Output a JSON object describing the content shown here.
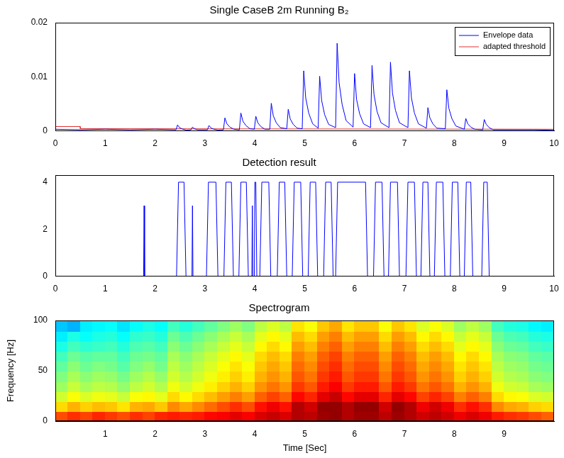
{
  "chart_data": [
    {
      "type": "line",
      "title": "Single CaseB 2m Running B₂",
      "xlim": [
        0,
        10
      ],
      "xticks": [
        0,
        1,
        2,
        3,
        4,
        5,
        6,
        7,
        8,
        9,
        10
      ],
      "ylim": [
        0,
        0.02
      ],
      "yticks": [
        0,
        0.01,
        0.02
      ],
      "grid": false,
      "legend": "upper right",
      "series": [
        {
          "name": "Envelope data",
          "color": "#0000ff",
          "x": [
            0,
            0.5,
            1,
            1.5,
            2,
            2.42,
            2.45,
            2.49,
            2.55,
            2.63,
            2.72,
            2.75,
            2.79,
            2.85,
            3.05,
            3.08,
            3.12,
            3.18,
            3.26,
            3.37,
            3.4,
            3.44,
            3.5,
            3.58,
            3.69,
            3.72,
            3.76,
            3.82,
            3.9,
            3.99,
            4.02,
            4.06,
            4.12,
            4.2,
            4.3,
            4.33,
            4.37,
            4.43,
            4.51,
            4.64,
            4.67,
            4.71,
            4.77,
            4.85,
            4.95,
            4.98,
            5.02,
            5.08,
            5.16,
            5.27,
            5.3,
            5.34,
            5.4,
            5.48,
            5.62,
            5.65,
            5.69,
            5.75,
            5.83,
            5.97,
            6,
            6.04,
            6.1,
            6.18,
            6.32,
            6.35,
            6.39,
            6.45,
            6.53,
            6.69,
            6.72,
            6.76,
            6.82,
            6.9,
            7.07,
            7.1,
            7.14,
            7.2,
            7.28,
            7.44,
            7.47,
            7.51,
            7.57,
            7.65,
            7.82,
            7.85,
            7.89,
            7.95,
            8.03,
            8.2,
            8.23,
            8.27,
            8.33,
            8.41,
            8.57,
            8.6,
            8.64,
            8.7,
            8.78,
            9.2,
            9.6,
            10
          ],
          "values": [
            0.0003,
            0.0002,
            0.0003,
            0.0002,
            0.0003,
            0.0002,
            0.0011,
            0.0006,
            0.00033,
            0.00013,
            0.0002,
            0.0007,
            0.0004,
            0.0002,
            0.0002,
            0.001,
            0.00055,
            0.0003,
            0.00015,
            0.0002,
            0.0024,
            0.0013,
            0.0007,
            0.0003,
            0.0002,
            0.0033,
            0.0018,
            0.001,
            0.0004,
            0.0003,
            0.0027,
            0.0015,
            0.0008,
            0.0003,
            0.0003,
            0.0051,
            0.0028,
            0.0015,
            0.0006,
            0.0004,
            0.004,
            0.0022,
            0.0012,
            0.0005,
            0.0004,
            0.0111,
            0.0061,
            0.0033,
            0.0013,
            0.0005,
            0.0101,
            0.0056,
            0.003,
            0.0012,
            0.0006,
            0.0162,
            0.0089,
            0.0049,
            0.0019,
            0.0007,
            0.0106,
            0.0058,
            0.0032,
            0.0013,
            0.0006,
            0.0121,
            0.0067,
            0.0036,
            0.0015,
            0.0006,
            0.0127,
            0.007,
            0.0038,
            0.0015,
            0.0006,
            0.0111,
            0.0061,
            0.0033,
            0.0013,
            0.0005,
            0.0043,
            0.0024,
            0.0013,
            0.0005,
            0.0004,
            0.0076,
            0.0042,
            0.0023,
            0.0009,
            0.0003,
            0.0023,
            0.0013,
            0.0007,
            0.0003,
            0.0002,
            0.0021,
            0.0012,
            0.0006,
            0.0002,
            0.0002,
            0.0002,
            0.0001
          ]
        },
        {
          "name": "adapted threshold",
          "color": "#e03030",
          "x": [
            0,
            0.5,
            0.5,
            10
          ],
          "values": [
            0.0008,
            0.0008,
            0.0004,
            0.0003
          ]
        }
      ]
    },
    {
      "type": "line",
      "title": "Detection result",
      "xlim": [
        0,
        10
      ],
      "xticks": [
        0,
        1,
        2,
        3,
        4,
        5,
        6,
        7,
        8,
        9,
        10
      ],
      "ylim": [
        0,
        4.3
      ],
      "yticks": [
        0,
        2,
        4
      ],
      "grid": false,
      "color": "#0000ff",
      "x": [
        0,
        1.77,
        1.78,
        1.79,
        2.43,
        2.47,
        2.58,
        2.62,
        2.74,
        2.75,
        2.76,
        3.03,
        3.07,
        3.22,
        3.26,
        3.38,
        3.42,
        3.53,
        3.57,
        3.68,
        3.72,
        3.83,
        3.87,
        3.94,
        3.95,
        3.96,
        3.99,
        4.0,
        4.02,
        4.04,
        4.1,
        4.14,
        4.28,
        4.32,
        4.45,
        4.49,
        4.6,
        4.64,
        4.75,
        4.79,
        4.92,
        4.96,
        5.07,
        5.11,
        5.22,
        5.26,
        5.38,
        5.42,
        5.53,
        5.57,
        5.62,
        5.66,
        6.22,
        6.26,
        6.38,
        6.42,
        6.55,
        6.59,
        6.68,
        6.72,
        6.86,
        6.9,
        7.03,
        7.07,
        7.2,
        7.24,
        7.33,
        7.37,
        7.47,
        7.51,
        7.6,
        7.64,
        7.77,
        7.81,
        7.92,
        7.96,
        8.07,
        8.11,
        8.2,
        8.24,
        8.33,
        8.37,
        8.55,
        8.59,
        8.66,
        8.7,
        10
      ],
      "values": [
        0,
        0,
        3,
        0,
        0,
        4,
        4,
        0,
        0,
        3,
        0,
        0,
        4,
        4,
        0,
        0,
        4,
        4,
        0,
        0,
        4,
        4,
        0,
        0,
        3,
        0,
        0,
        4,
        4,
        0,
        0,
        4,
        4,
        0,
        0,
        4,
        4,
        0,
        0,
        4,
        4,
        0,
        0,
        4,
        4,
        0,
        0,
        4,
        4,
        0,
        0,
        4,
        4,
        0,
        0,
        4,
        4,
        0,
        0,
        4,
        4,
        0,
        0,
        4,
        4,
        0,
        0,
        4,
        4,
        0,
        0,
        4,
        4,
        0,
        0,
        4,
        4,
        0,
        0,
        4,
        4,
        0,
        0,
        4,
        4,
        0,
        0
      ]
    },
    {
      "type": "heatmap",
      "title": "Spectrogram",
      "x_label": "Time [Sec]",
      "y_label": "Frequency [Hz]",
      "xlim": [
        0,
        10
      ],
      "xticks": [
        1,
        2,
        3,
        4,
        5,
        6,
        7,
        8,
        9
      ],
      "ylim": [
        0,
        100
      ],
      "yticks": [
        0,
        50,
        100
      ],
      "grid": false,
      "zlim": [
        0,
        1
      ],
      "time_bins": [
        0,
        0.25,
        0.5,
        0.75,
        1,
        1.25,
        1.5,
        1.75,
        2,
        2.25,
        2.5,
        2.75,
        3,
        3.25,
        3.5,
        3.75,
        4,
        4.25,
        4.5,
        4.75,
        5,
        5.25,
        5.5,
        5.75,
        6,
        6.25,
        6.5,
        6.75,
        7,
        7.25,
        7.5,
        7.75,
        8,
        8.25,
        8.5,
        8.75,
        9,
        9.25,
        9.5,
        9.75,
        10
      ],
      "frequency_bins": [
        0,
        10,
        20,
        30,
        40,
        50,
        60,
        70,
        80,
        90,
        100
      ],
      "cells": [
        [
          0.8,
          0.83,
          0.81,
          0.84,
          0.82,
          0.8,
          0.83,
          0.81,
          0.84,
          0.85,
          0.84,
          0.85,
          0.87,
          0.88,
          0.9,
          0.88,
          0.91,
          0.93,
          0.91,
          0.95,
          0.94,
          0.97,
          0.98,
          0.95,
          0.97,
          0.97,
          0.94,
          0.97,
          0.95,
          0.92,
          0.94,
          0.92,
          0.89,
          0.91,
          0.89,
          0.85,
          0.83,
          0.82,
          0.8,
          0.78
        ],
        [
          0.66,
          0.7,
          0.67,
          0.69,
          0.68,
          0.65,
          0.7,
          0.71,
          0.68,
          0.74,
          0.71,
          0.74,
          0.77,
          0.8,
          0.83,
          0.8,
          0.86,
          0.89,
          0.86,
          0.95,
          0.92,
          0.98,
          0.98,
          0.95,
          0.98,
          0.98,
          0.92,
          0.98,
          0.95,
          0.89,
          0.92,
          0.89,
          0.83,
          0.86,
          0.83,
          0.74,
          0.71,
          0.7,
          0.67,
          0.66
        ],
        [
          0.58,
          0.62,
          0.59,
          0.61,
          0.6,
          0.57,
          0.62,
          0.63,
          0.6,
          0.66,
          0.63,
          0.66,
          0.69,
          0.72,
          0.75,
          0.72,
          0.78,
          0.81,
          0.78,
          0.87,
          0.84,
          0.9,
          0.93,
          0.87,
          0.9,
          0.9,
          0.84,
          0.9,
          0.87,
          0.81,
          0.84,
          0.81,
          0.75,
          0.78,
          0.75,
          0.66,
          0.63,
          0.62,
          0.59,
          0.58
        ],
        [
          0.53,
          0.57,
          0.54,
          0.56,
          0.55,
          0.52,
          0.56,
          0.58,
          0.55,
          0.61,
          0.58,
          0.61,
          0.64,
          0.67,
          0.7,
          0.67,
          0.73,
          0.76,
          0.73,
          0.82,
          0.79,
          0.85,
          0.88,
          0.82,
          0.85,
          0.85,
          0.79,
          0.85,
          0.82,
          0.76,
          0.79,
          0.76,
          0.7,
          0.73,
          0.7,
          0.61,
          0.58,
          0.57,
          0.54,
          0.53
        ],
        [
          0.5,
          0.54,
          0.51,
          0.53,
          0.52,
          0.49,
          0.53,
          0.55,
          0.52,
          0.58,
          0.55,
          0.58,
          0.61,
          0.64,
          0.67,
          0.64,
          0.7,
          0.73,
          0.7,
          0.79,
          0.76,
          0.82,
          0.85,
          0.79,
          0.82,
          0.82,
          0.76,
          0.82,
          0.79,
          0.73,
          0.76,
          0.73,
          0.67,
          0.7,
          0.67,
          0.58,
          0.55,
          0.54,
          0.51,
          0.5
        ],
        [
          0.47,
          0.51,
          0.48,
          0.5,
          0.49,
          0.46,
          0.5,
          0.52,
          0.49,
          0.56,
          0.53,
          0.56,
          0.59,
          0.62,
          0.65,
          0.62,
          0.68,
          0.71,
          0.68,
          0.77,
          0.74,
          0.8,
          0.83,
          0.77,
          0.8,
          0.8,
          0.74,
          0.8,
          0.77,
          0.71,
          0.74,
          0.71,
          0.65,
          0.68,
          0.65,
          0.56,
          0.53,
          0.52,
          0.49,
          0.48
        ],
        [
          0.44,
          0.48,
          0.46,
          0.47,
          0.47,
          0.44,
          0.48,
          0.49,
          0.47,
          0.54,
          0.51,
          0.54,
          0.57,
          0.6,
          0.63,
          0.6,
          0.66,
          0.69,
          0.66,
          0.75,
          0.72,
          0.78,
          0.81,
          0.75,
          0.78,
          0.78,
          0.72,
          0.78,
          0.75,
          0.69,
          0.72,
          0.69,
          0.63,
          0.66,
          0.63,
          0.54,
          0.51,
          0.5,
          0.47,
          0.46
        ],
        [
          0.4,
          0.44,
          0.42,
          0.43,
          0.44,
          0.41,
          0.45,
          0.46,
          0.44,
          0.51,
          0.48,
          0.51,
          0.54,
          0.57,
          0.6,
          0.57,
          0.63,
          0.66,
          0.63,
          0.72,
          0.69,
          0.75,
          0.78,
          0.72,
          0.75,
          0.75,
          0.69,
          0.75,
          0.72,
          0.66,
          0.69,
          0.66,
          0.6,
          0.63,
          0.6,
          0.51,
          0.48,
          0.47,
          0.44,
          0.43
        ],
        [
          0.36,
          0.4,
          0.38,
          0.4,
          0.41,
          0.38,
          0.42,
          0.43,
          0.41,
          0.48,
          0.45,
          0.48,
          0.51,
          0.54,
          0.57,
          0.54,
          0.6,
          0.63,
          0.6,
          0.69,
          0.66,
          0.72,
          0.75,
          0.69,
          0.72,
          0.72,
          0.66,
          0.72,
          0.69,
          0.63,
          0.66,
          0.63,
          0.57,
          0.6,
          0.57,
          0.48,
          0.45,
          0.44,
          0.41,
          0.4
        ],
        [
          0.32,
          0.3,
          0.36,
          0.37,
          0.38,
          0.35,
          0.38,
          0.4,
          0.38,
          0.44,
          0.41,
          0.44,
          0.47,
          0.5,
          0.53,
          0.5,
          0.56,
          0.59,
          0.56,
          0.65,
          0.62,
          0.68,
          0.71,
          0.65,
          0.68,
          0.68,
          0.62,
          0.68,
          0.65,
          0.59,
          0.62,
          0.59,
          0.53,
          0.56,
          0.53,
          0.44,
          0.41,
          0.4,
          0.37,
          0.36
        ]
      ]
    }
  ]
}
